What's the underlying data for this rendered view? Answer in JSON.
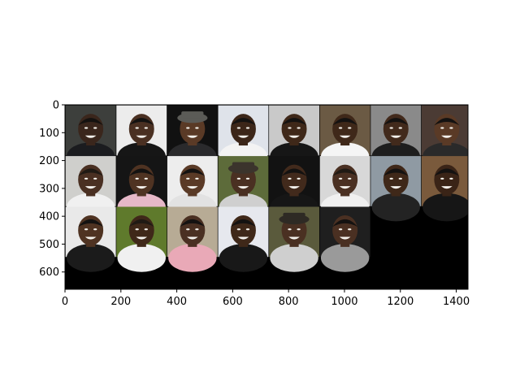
{
  "chart_data": {
    "type": "image-grid",
    "title": "",
    "xlabel": "",
    "ylabel": "",
    "xlim": [
      0,
      1442
    ],
    "ylim": [
      662,
      0
    ],
    "xticks": [
      0,
      200,
      400,
      600,
      800,
      1000,
      1200,
      1400
    ],
    "yticks": [
      0,
      100,
      200,
      300,
      400,
      500,
      600
    ],
    "grid": false,
    "grid_layout": {
      "columns": 8,
      "rows": 3
    },
    "image_count": 22,
    "tile_size_data_units": 180,
    "background_color": "#000000",
    "tiles": [
      {
        "row": 0,
        "col": 0,
        "bg": "#3d3f3c",
        "skin": "#3a261c",
        "shirt": "#1b1c1f",
        "hair": "#151210"
      },
      {
        "row": 0,
        "col": 1,
        "bg": "#ececec",
        "skin": "#4a3022",
        "shirt": "#161616",
        "hair": "#141211"
      },
      {
        "row": 0,
        "col": 2,
        "bg": "#111111",
        "skin": "#5a3a26",
        "shirt": "#2a2a2c",
        "hair": "#5b5b57",
        "hat": true
      },
      {
        "row": 0,
        "col": 3,
        "bg": "#dfe3ea",
        "skin": "#3c2619",
        "shirt": "#f3f3f3",
        "hair": "#141211"
      },
      {
        "row": 0,
        "col": 4,
        "bg": "#c9c9c9",
        "skin": "#3f2819",
        "shirt": "#161616",
        "hair": "#141211"
      },
      {
        "row": 0,
        "col": 5,
        "bg": "#6b5a44",
        "skin": "#3f2819",
        "shirt": "#f5f5f5",
        "hair": "#141211"
      },
      {
        "row": 0,
        "col": 6,
        "bg": "#8a8a8a",
        "skin": "#422a1c",
        "shirt": "#1e1e1e",
        "hair": "#141211"
      },
      {
        "row": 0,
        "col": 7,
        "bg": "#4b3b34",
        "skin": "#5a3a26",
        "shirt": "#2a2a2a",
        "hair": "#141211"
      },
      {
        "row": 1,
        "col": 0,
        "bg": "#cfcfcc",
        "skin": "#4a3022",
        "shirt": "#f0f0f0",
        "hair": "#201a14"
      },
      {
        "row": 1,
        "col": 1,
        "bg": "#151515",
        "skin": "#4f3322",
        "shirt": "#e6b8c8",
        "hair": "#141211"
      },
      {
        "row": 1,
        "col": 2,
        "bg": "#ededed",
        "skin": "#5a3a26",
        "shirt": "#e2e2e2",
        "hair": "#141211"
      },
      {
        "row": 1,
        "col": 3,
        "bg": "#5d6b3a",
        "skin": "#4a3022",
        "shirt": "#cfcfcf",
        "hair": "#3b342c",
        "hat": true
      },
      {
        "row": 1,
        "col": 4,
        "bg": "#121212",
        "skin": "#422a1c",
        "shirt": "#161616",
        "hair": "#141211"
      },
      {
        "row": 1,
        "col": 5,
        "bg": "#d8d8d8",
        "skin": "#4a3022",
        "shirt": "#f0f0f0",
        "hair": "#201a14"
      },
      {
        "row": 1,
        "col": 6,
        "bg": "#8f9aa3",
        "skin": "#3f2819",
        "shirt": "#232323",
        "hair": "#141211"
      },
      {
        "row": 1,
        "col": 7,
        "bg": "#7a5a3c",
        "skin": "#3a2417",
        "shirt": "#161616",
        "hair": "#141211"
      },
      {
        "row": 2,
        "col": 0,
        "bg": "#e9e9e9",
        "skin": "#4f3322",
        "shirt": "#1b1b1b",
        "hair": "#141211"
      },
      {
        "row": 2,
        "col": 1,
        "bg": "#5f7a2c",
        "skin": "#3f2819",
        "shirt": "#f0f0f0",
        "hair": "#201a14"
      },
      {
        "row": 2,
        "col": 2,
        "bg": "#b7ab95",
        "skin": "#4a3022",
        "shirt": "#e9a9b7",
        "hair": "#141211"
      },
      {
        "row": 2,
        "col": 3,
        "bg": "#e6e8ee",
        "skin": "#3f2819",
        "shirt": "#181818",
        "hair": "#141211"
      },
      {
        "row": 2,
        "col": 4,
        "bg": "#5a5a3c",
        "skin": "#4a3022",
        "shirt": "#cfcfcf",
        "hair": "#2e2a24",
        "hat": true
      },
      {
        "row": 2,
        "col": 5,
        "bg": "#1f1f1f",
        "skin": "#4a3022",
        "shirt": "#9a9a9a",
        "hair": "#141211"
      }
    ]
  }
}
